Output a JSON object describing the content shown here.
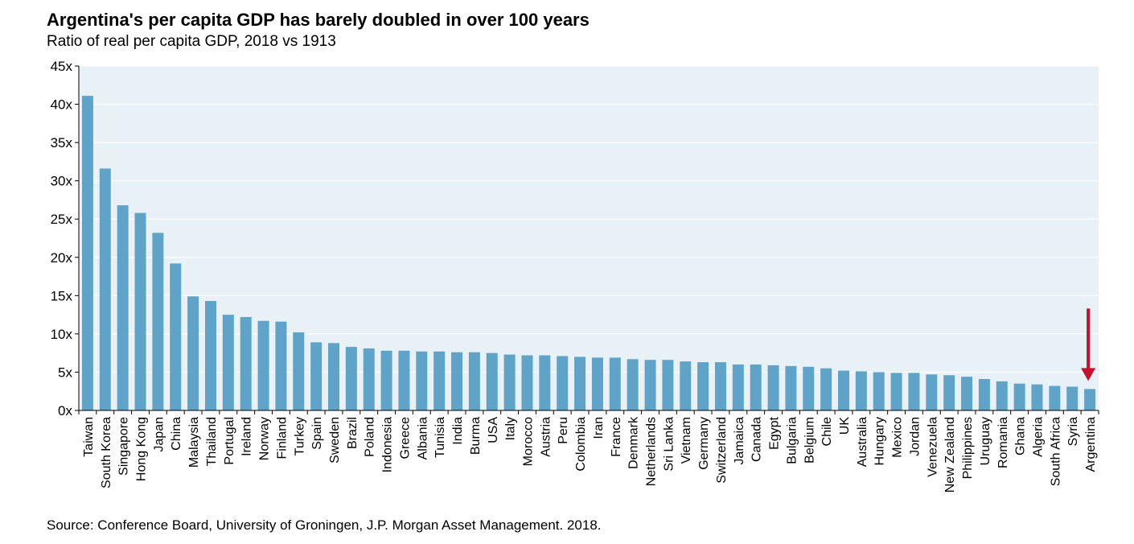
{
  "title": "Argentina's per capita GDP has barely doubled in over 100 years",
  "subtitle": "Ratio of real per capita GDP, 2018 vs 1913",
  "source": "Source: Conference Board, University of Groningen, J.P. Morgan Asset Management. 2018.",
  "colors": {
    "bar": "#5fa3c9",
    "plot_background": "#e8f1f5",
    "gridline": "#ffffff",
    "highlight_arrow": "#c8102e"
  },
  "chart_data": {
    "type": "bar",
    "title": "Argentina's per capita GDP has barely doubled in over 100 years",
    "subtitle": "Ratio of real per capita GDP, 2018 vs 1913",
    "xlabel": "",
    "ylabel": "",
    "ylim": [
      0,
      45
    ],
    "yticks": [
      0,
      5,
      10,
      15,
      20,
      25,
      30,
      35,
      40,
      45
    ],
    "ytick_labels": [
      "0x",
      "5x",
      "10x",
      "15x",
      "20x",
      "25x",
      "30x",
      "35x",
      "40x",
      "45x"
    ],
    "grid": true,
    "legend": "none",
    "highlight": {
      "category": "Argentina",
      "marker": "down-arrow"
    },
    "categories": [
      "Taiwan",
      "South Korea",
      "Singapore",
      "Hong Kong",
      "Japan",
      "China",
      "Malaysia",
      "Thailand",
      "Portugal",
      "Ireland",
      "Norway",
      "Finland",
      "Turkey",
      "Spain",
      "Sweden",
      "Brazil",
      "Poland",
      "Indonesia",
      "Greece",
      "Albania",
      "Tunisia",
      "India",
      "Burma",
      "USA",
      "Italy",
      "Morocco",
      "Austria",
      "Peru",
      "Colombia",
      "Iran",
      "France",
      "Denmark",
      "Netherlands",
      "Sri Lanka",
      "Vietnam",
      "Germany",
      "Switzerland",
      "Jamaica",
      "Canada",
      "Egypt",
      "Bulgaria",
      "Belgium",
      "Chile",
      "UK",
      "Australia",
      "Hungary",
      "Mexico",
      "Jordan",
      "Venezuela",
      "New Zealand",
      "Philippines",
      "Uruguay",
      "Romania",
      "Ghana",
      "Algeria",
      "South Africa",
      "Syria",
      "Argentina"
    ],
    "values": [
      41.1,
      31.6,
      26.8,
      25.8,
      23.2,
      19.2,
      14.9,
      14.3,
      12.5,
      12.2,
      11.7,
      11.6,
      10.2,
      8.9,
      8.8,
      8.3,
      8.1,
      7.8,
      7.8,
      7.7,
      7.7,
      7.6,
      7.6,
      7.5,
      7.3,
      7.2,
      7.2,
      7.1,
      7.0,
      6.9,
      6.9,
      6.7,
      6.6,
      6.6,
      6.4,
      6.3,
      6.3,
      6.0,
      6.0,
      5.9,
      5.8,
      5.7,
      5.5,
      5.2,
      5.1,
      5.0,
      4.9,
      4.9,
      4.7,
      4.6,
      4.4,
      4.1,
      3.8,
      3.5,
      3.4,
      3.2,
      3.1,
      2.8
    ]
  }
}
